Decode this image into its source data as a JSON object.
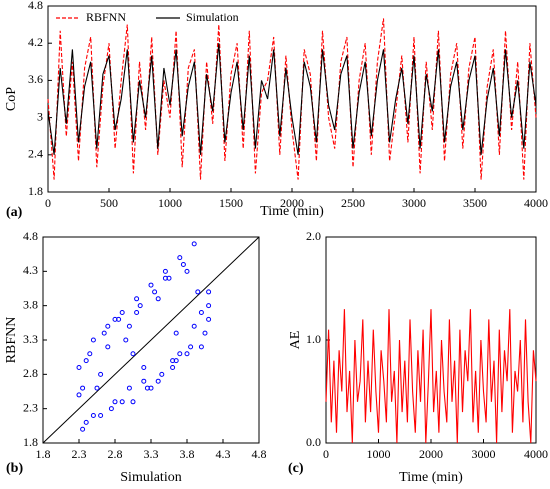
{
  "chart_data": [
    {
      "type": "line",
      "panel_label": "(a)",
      "xlabel": "Time (min)",
      "ylabel": "CoP",
      "xlim": [
        0,
        4000
      ],
      "xticks": [
        0,
        500,
        1000,
        1500,
        2000,
        2500,
        3000,
        3500,
        4000
      ],
      "ylim": [
        1.8,
        4.8
      ],
      "yticks": [
        1.8,
        2.4,
        3,
        3.6,
        4.2,
        4.8
      ],
      "legend": "upper left",
      "x": [
        0,
        50,
        100,
        150,
        200,
        250,
        300,
        350,
        400,
        450,
        500,
        550,
        600,
        650,
        700,
        750,
        800,
        850,
        900,
        950,
        1000,
        1050,
        1100,
        1150,
        1200,
        1250,
        1300,
        1350,
        1400,
        1450,
        1500,
        1550,
        1600,
        1650,
        1700,
        1750,
        1800,
        1850,
        1900,
        1950,
        2000,
        2050,
        2100,
        2150,
        2200,
        2250,
        2300,
        2350,
        2400,
        2450,
        2500,
        2550,
        2600,
        2650,
        2700,
        2750,
        2800,
        2850,
        2900,
        2950,
        3000,
        3050,
        3100,
        3150,
        3200,
        3250,
        3300,
        3350,
        3400,
        3450,
        3500,
        3550,
        3600,
        3650,
        3700,
        3750,
        3800,
        3850,
        3900,
        3950,
        4000
      ],
      "series": [
        {
          "name": "RBFNN",
          "color": "#ff0000",
          "linestyle": "dashed",
          "values": [
            3.3,
            2.0,
            4.4,
            2.7,
            3.9,
            2.3,
            3.8,
            4.3,
            2.2,
            3.5,
            4.2,
            2.5,
            3.6,
            4.5,
            2.1,
            3.9,
            2.8,
            4.3,
            2.4,
            3.6,
            3.0,
            4.4,
            2.2,
            3.8,
            4.1,
            2.0,
            3.9,
            2.9,
            4.5,
            2.3,
            3.7,
            4.2,
            2.5,
            4.4,
            2.1,
            3.4,
            3.6,
            4.3,
            2.4,
            4.0,
            2.8,
            2.0,
            4.1,
            3.7,
            2.3,
            4.4,
            3.0,
            2.5,
            3.9,
            4.3,
            2.2,
            3.6,
            4.2,
            2.4,
            3.9,
            4.6,
            2.3,
            3.1,
            4.0,
            2.6,
            4.3,
            2.1,
            3.9,
            2.8,
            4.4,
            2.3,
            3.7,
            4.2,
            2.5,
            3.8,
            4.3,
            2.0,
            3.5,
            4.1,
            2.4,
            4.4,
            2.8,
            3.9,
            2.0,
            4.2,
            3.0
          ]
        },
        {
          "name": "Simulation",
          "color": "#000000",
          "linestyle": "solid",
          "values": [
            3.1,
            2.4,
            3.8,
            2.9,
            4.1,
            2.6,
            3.5,
            3.9,
            2.5,
            3.7,
            4.0,
            2.8,
            3.3,
            4.1,
            2.6,
            3.6,
            3.0,
            4.0,
            2.5,
            3.8,
            3.2,
            4.1,
            2.7,
            3.5,
            3.9,
            2.4,
            3.7,
            3.1,
            4.2,
            2.6,
            3.4,
            3.9,
            2.8,
            4.0,
            2.5,
            3.6,
            3.3,
            4.1,
            2.7,
            3.8,
            3.0,
            2.4,
            3.9,
            3.5,
            2.6,
            4.1,
            3.2,
            2.8,
            3.7,
            4.0,
            2.5,
            3.4,
            3.9,
            2.7,
            3.6,
            4.1,
            2.6,
            3.3,
            3.8,
            2.9,
            4.0,
            2.5,
            3.7,
            3.1,
            4.1,
            2.6,
            3.5,
            3.9,
            2.8,
            3.6,
            4.0,
            2.4,
            3.3,
            3.8,
            2.7,
            4.1,
            3.0,
            3.6,
            2.5,
            3.9,
            3.2
          ]
        }
      ]
    },
    {
      "type": "scatter",
      "panel_label": "(b)",
      "xlabel": "Simulation",
      "ylabel": "RBFNN",
      "xlim": [
        1.8,
        4.8
      ],
      "xticks": [
        1.8,
        2.3,
        2.8,
        3.3,
        3.8,
        4.3,
        4.8
      ],
      "ylim": [
        1.8,
        4.8
      ],
      "yticks": [
        1.8,
        2.3,
        2.8,
        3.3,
        3.8,
        4.3,
        4.8
      ],
      "diagonal": true,
      "x": [
        2.3,
        2.4,
        2.5,
        2.6,
        2.7,
        2.8,
        2.9,
        3.0,
        3.1,
        3.2,
        3.3,
        3.4,
        3.5,
        3.6,
        3.7,
        3.8,
        3.9,
        4.0,
        4.1,
        2.35,
        2.45,
        2.55,
        2.65,
        2.75,
        2.85,
        2.95,
        3.05,
        3.15,
        3.25,
        3.35,
        3.45,
        3.55,
        3.65,
        3.75,
        3.85,
        3.95,
        4.05,
        2.3,
        2.5,
        2.7,
        2.9,
        3.1,
        3.3,
        3.5,
        3.7,
        3.9,
        4.1,
        2.4,
        2.6,
        2.8,
        3.0,
        3.2,
        3.4,
        3.6,
        3.8,
        4.0,
        2.35,
        3.65,
        3.05,
        4.1
      ],
      "series": [
        {
          "color": "#0000ff",
          "values": [
            2.9,
            2.1,
            3.3,
            2.2,
            3.5,
            2.4,
            3.7,
            2.6,
            3.9,
            2.9,
            4.1,
            2.7,
            4.3,
            3.0,
            4.5,
            3.1,
            4.7,
            3.2,
            3.6,
            2.0,
            3.1,
            2.6,
            3.4,
            2.3,
            3.6,
            3.3,
            2.4,
            3.8,
            2.6,
            4.0,
            2.8,
            4.2,
            3.0,
            4.4,
            3.2,
            4.0,
            3.4,
            2.5,
            2.2,
            3.2,
            2.4,
            3.7,
            2.6,
            4.2,
            3.1,
            3.5,
            4.0,
            3.0,
            2.8,
            3.6,
            3.5,
            2.7,
            3.9,
            2.9,
            4.3,
            3.7,
            2.6,
            3.4,
            3.1,
            3.8
          ]
        }
      ]
    },
    {
      "type": "line",
      "panel_label": "(c)",
      "xlabel": "Time (min)",
      "ylabel": "AE",
      "xlim": [
        0,
        4000
      ],
      "xticks": [
        0,
        1000,
        2000,
        3000,
        4000
      ],
      "ylim": [
        0,
        2
      ],
      "yticks": [
        {
          "value": 0,
          "label": "0.0"
        },
        {
          "value": 1,
          "label": "1.0"
        },
        {
          "value": 2,
          "label": "2.0"
        }
      ],
      "x": [
        0,
        50,
        100,
        150,
        200,
        250,
        300,
        350,
        400,
        450,
        500,
        550,
        600,
        650,
        700,
        750,
        800,
        850,
        900,
        950,
        1000,
        1050,
        1100,
        1150,
        1200,
        1250,
        1300,
        1350,
        1400,
        1450,
        1500,
        1550,
        1600,
        1650,
        1700,
        1750,
        1800,
        1850,
        1900,
        1950,
        2000,
        2050,
        2100,
        2150,
        2200,
        2250,
        2300,
        2350,
        2400,
        2450,
        2500,
        2550,
        2600,
        2650,
        2700,
        2750,
        2800,
        2850,
        2900,
        2950,
        3000,
        3050,
        3100,
        3150,
        3200,
        3250,
        3300,
        3350,
        3400,
        3450,
        3500,
        3550,
        3600,
        3650,
        3700,
        3750,
        3800,
        3850,
        3900,
        3950,
        4000
      ],
      "series": [
        {
          "color": "#ff0000",
          "linestyle": "solid",
          "values": [
            0.4,
            1.1,
            0.2,
            0.8,
            0.1,
            0.9,
            0.5,
            1.3,
            0.3,
            0.7,
            0.0,
            1.0,
            0.4,
            0.6,
            1.2,
            0.2,
            0.8,
            0.3,
            1.1,
            0.5,
            0.1,
            0.9,
            0.6,
            0.2,
            1.3,
            0.4,
            0.7,
            0.0,
            1.0,
            0.3,
            0.8,
            0.2,
            1.2,
            0.5,
            0.1,
            0.9,
            0.4,
            1.1,
            0.0,
            0.6,
            1.3,
            0.3,
            0.7,
            0.1,
            1.0,
            0.5,
            0.2,
            1.2,
            0.4,
            0.8,
            0.0,
            1.1,
            0.3,
            0.9,
            0.6,
            1.3,
            0.2,
            0.7,
            0.1,
            1.0,
            0.5,
            0.2,
            1.2,
            0.4,
            0.8,
            0.0,
            1.1,
            0.3,
            0.9,
            0.6,
            1.3,
            0.1,
            0.7,
            0.5,
            1.0,
            0.2,
            1.2,
            0.4,
            0.0,
            0.9,
            0.6
          ]
        }
      ]
    }
  ]
}
